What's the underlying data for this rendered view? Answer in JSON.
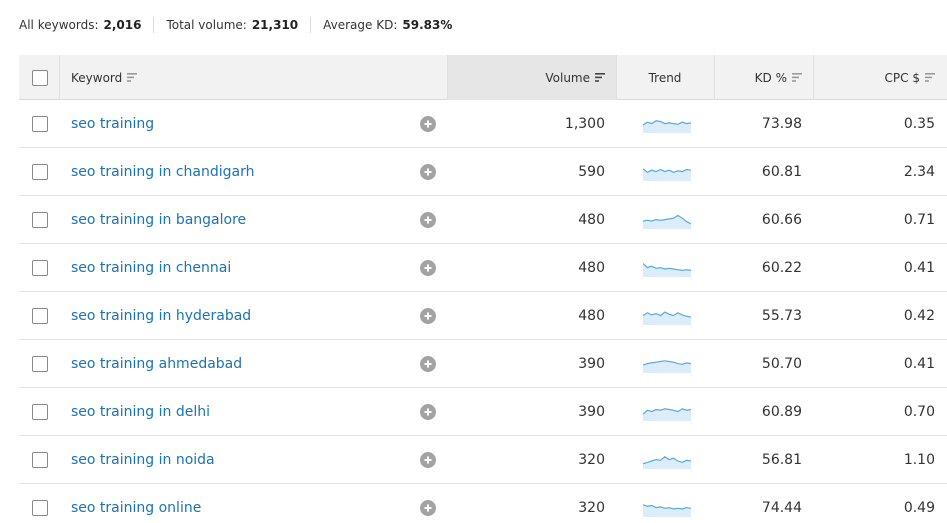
{
  "summary": {
    "all_keywords_label": "All keywords:",
    "all_keywords_value": "2,016",
    "total_volume_label": "Total volume:",
    "total_volume_value": "21,310",
    "avg_kd_label": "Average KD:",
    "avg_kd_value": "59.83%"
  },
  "columns": {
    "keyword": "Keyword",
    "volume": "Volume",
    "trend": "Trend",
    "kd": "KD %",
    "cpc": "CPC $"
  },
  "colors": {
    "link": "#1a73b5",
    "trend_line": "#5aa9de",
    "trend_fill": "#dcecf8"
  },
  "icons": {
    "sort": "sort-icon",
    "add": "plus-circle-icon"
  },
  "rows": [
    {
      "keyword": "seo training",
      "volume": "1,300",
      "kd": "73.98",
      "cpc": "0.35",
      "trend": [
        0.5,
        0.7,
        0.6,
        0.8,
        0.75,
        0.6,
        0.65,
        0.6,
        0.55,
        0.7,
        0.6,
        0.65
      ]
    },
    {
      "keyword": "seo training in chandigarh",
      "volume": "590",
      "kd": "60.81",
      "cpc": "2.34",
      "trend": [
        0.8,
        0.55,
        0.7,
        0.6,
        0.75,
        0.6,
        0.7,
        0.55,
        0.65,
        0.6,
        0.75,
        0.7
      ]
    },
    {
      "keyword": "seo training in bangalore",
      "volume": "480",
      "kd": "60.66",
      "cpc": "0.71",
      "trend": [
        0.5,
        0.55,
        0.5,
        0.6,
        0.55,
        0.6,
        0.65,
        0.7,
        0.9,
        0.7,
        0.45,
        0.3
      ]
    },
    {
      "keyword": "seo training in chennai",
      "volume": "480",
      "kd": "60.22",
      "cpc": "0.41",
      "trend": [
        0.9,
        0.6,
        0.7,
        0.55,
        0.6,
        0.5,
        0.55,
        0.5,
        0.45,
        0.4,
        0.45,
        0.4
      ]
    },
    {
      "keyword": "seo training in hyderabad",
      "volume": "480",
      "kd": "55.73",
      "cpc": "0.42",
      "trend": [
        0.6,
        0.8,
        0.65,
        0.75,
        0.6,
        0.85,
        0.7,
        0.6,
        0.8,
        0.65,
        0.55,
        0.5
      ]
    },
    {
      "keyword": "seo training ahmedabad",
      "volume": "390",
      "kd": "50.70",
      "cpc": "0.41",
      "trend": [
        0.5,
        0.6,
        0.65,
        0.7,
        0.75,
        0.8,
        0.75,
        0.7,
        0.6,
        0.55,
        0.65,
        0.6
      ]
    },
    {
      "keyword": "seo training in delhi",
      "volume": "390",
      "kd": "60.89",
      "cpc": "0.70",
      "trend": [
        0.4,
        0.7,
        0.6,
        0.75,
        0.7,
        0.8,
        0.75,
        0.7,
        0.6,
        0.8,
        0.7,
        0.75
      ]
    },
    {
      "keyword": "seo training in noida",
      "volume": "320",
      "kd": "56.81",
      "cpc": "1.10",
      "trend": [
        0.3,
        0.4,
        0.5,
        0.6,
        0.55,
        0.8,
        0.6,
        0.7,
        0.5,
        0.4,
        0.55,
        0.5
      ]
    },
    {
      "keyword": "seo training online",
      "volume": "320",
      "kd": "74.44",
      "cpc": "0.49",
      "trend": [
        0.8,
        0.7,
        0.75,
        0.6,
        0.65,
        0.55,
        0.6,
        0.5,
        0.55,
        0.5,
        0.6,
        0.55
      ]
    }
  ]
}
